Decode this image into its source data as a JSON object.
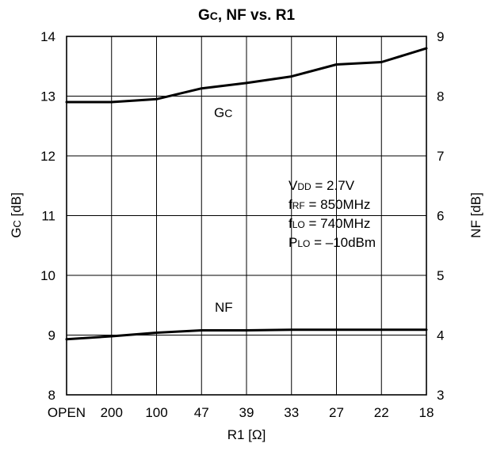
{
  "chart_data": {
    "type": "line",
    "title": {
      "main": "Gc, NF vs. R1"
    },
    "categories": [
      "OPEN",
      "200",
      "100",
      "47",
      "39",
      "33",
      "27",
      "22",
      "18"
    ],
    "xlabel": "R1 [Ω]",
    "ylabel_left": "Gc [dB]",
    "ylabel_right": "NF [dB]",
    "ylim_left": [
      8,
      14
    ],
    "ylim_right": [
      3,
      9
    ],
    "yticks_left": [
      "8",
      "9",
      "10",
      "11",
      "12",
      "13",
      "14"
    ],
    "yticks_right": [
      "3",
      "4",
      "5",
      "6",
      "7",
      "8",
      "9"
    ],
    "grid": true,
    "series": [
      {
        "name": "Gc",
        "axis": "left",
        "values": [
          12.9,
          12.9,
          12.95,
          13.13,
          13.22,
          13.33,
          13.53,
          13.57,
          13.8
        ]
      },
      {
        "name": "NF",
        "axis": "right",
        "values": [
          3.93,
          3.98,
          4.04,
          4.08,
          4.08,
          4.09,
          4.09,
          4.09,
          4.09
        ]
      }
    ],
    "conditions": [
      {
        "main": "V",
        "sub": "DD",
        "rest": " = 2.7V"
      },
      {
        "main": "f",
        "sub": "RF",
        "rest": " = 850MHz"
      },
      {
        "main": "f",
        "sub": "LO",
        "rest": " = 740MHz"
      },
      {
        "main": "P",
        "sub": "LO",
        "rest": " = –10dBm"
      }
    ]
  }
}
